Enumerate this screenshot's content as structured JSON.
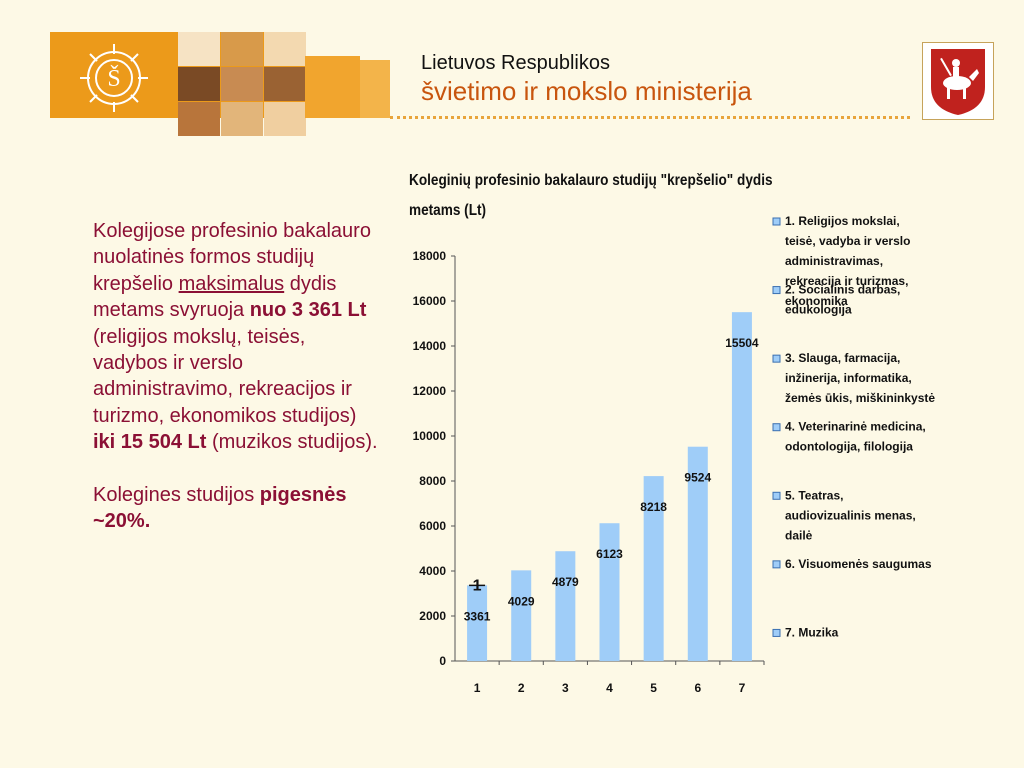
{
  "header": {
    "line1": "Lietuvos Respublikos",
    "line2": "švietimo ir mokslo ministerija",
    "accent_color": "#ec9a1a",
    "title_color": "#c8550e",
    "logo_icon": "ministry-emblem-icon",
    "coat_icon": "vytis-coat-of-arms-icon"
  },
  "left_text": {
    "p1_a": "Kolegijose profesinio bakalauro nuolatinės formos studijų krepšelio ",
    "p1_u": "maksimalus",
    "p1_b": " dydis metams svyruoja ",
    "p1_bold1": "nuo 3 361 Lt",
    "p1_c": " (religijos mokslų, teisės, vadybos ir verslo administravimo, rekreacijos ir turizmo, ekonomikos studijos) ",
    "p1_bold2": "iki 15 504 Lt",
    "p1_d": " (muzikos studijos).",
    "p2_a": "Kolegines studijos ",
    "p2_bold": "pigesnės ~20%.",
    "text_color": "#8b1035"
  },
  "chart_data": {
    "type": "bar",
    "title": "Koleginių profesinio bakalauro studijų \"krepšelio\" dydis metams (Lt)",
    "categories": [
      "1",
      "2",
      "3",
      "4",
      "5",
      "6",
      "7"
    ],
    "values": [
      3361,
      4029,
      4879,
      6123,
      8218,
      9524,
      15504
    ],
    "data_labels": [
      "3361",
      "4029",
      "4879",
      "6123",
      "8218",
      "9524",
      "15504"
    ],
    "ylim": [
      0,
      18000
    ],
    "yticks": [
      "0",
      "2000",
      "4000",
      "6000",
      "8000",
      "10000",
      "12000",
      "14000",
      "16000",
      "18000"
    ],
    "grid": false,
    "bar_color": "#9fcdf8",
    "annotation": "1",
    "legend_position": "right",
    "legend": [
      "1. Religijos mokslai, teisė, vadyba ir verslo administravimas, rekreacija ir turizmas, ekonomika",
      "2. Socialinis darbas, edukologija",
      "3. Slauga, farmacija, inžinerija, informatika, žemės ūkis, miškininkystė",
      "4. Veterinarinė medicina, odontologija, filologija",
      "5. Teatras, audiovizualinis menas, dailė",
      "6. Visuomenės saugumas",
      "7. Muzika"
    ]
  }
}
